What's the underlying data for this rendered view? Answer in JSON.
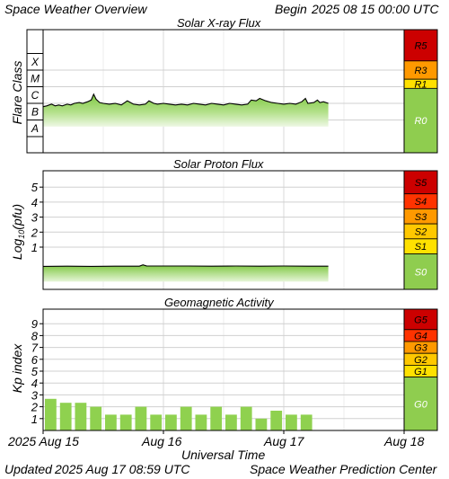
{
  "header": {
    "title": "Space Weather Overview",
    "begin_label": "Begin",
    "begin_value": "2025 08 15 00:00 UTC"
  },
  "footer": {
    "updated_label": "Updated",
    "updated_value": "2025 Aug 17 08:59 UTC",
    "credit": "Space Weather Prediction Center"
  },
  "colors": {
    "fill_green": "#8fd14f",
    "scale_G0": "#8fcd4f",
    "scale_1": "#ffe100",
    "scale_2": "#ffc800",
    "scale_3": "#ff9900",
    "scale_4": "#ff3300",
    "scale_5": "#cc0000"
  },
  "chart_data": [
    {
      "type": "area",
      "title": "Solar X-ray Flux",
      "ylabel": "Flare Class",
      "y_tick_labels": [
        "A",
        "B",
        "C",
        "M",
        "X"
      ],
      "x_tick_labels": [
        "2025 Aug 15",
        "Aug 16",
        "Aug 17",
        "Aug 18"
      ],
      "x_range_days": [
        0,
        3
      ],
      "data_end_day": 2.37,
      "series": [
        {
          "x_days": [
            0.0,
            0.03,
            0.07,
            0.1,
            0.13,
            0.16,
            0.2,
            0.23,
            0.26,
            0.3,
            0.33,
            0.37,
            0.4,
            0.42,
            0.44,
            0.47,
            0.5,
            0.55,
            0.6,
            0.65,
            0.7,
            0.75,
            0.8,
            0.85,
            0.88,
            0.92,
            0.95,
            1.0,
            1.05,
            1.1,
            1.15,
            1.2,
            1.25,
            1.3,
            1.35,
            1.4,
            1.45,
            1.5,
            1.55,
            1.6,
            1.65,
            1.7,
            1.73,
            1.77,
            1.8,
            1.85,
            1.9,
            1.95,
            2.0,
            2.05,
            2.1,
            2.15,
            2.18,
            2.2,
            2.25,
            2.28,
            2.3,
            2.33,
            2.37
          ],
          "class_level": [
            1.8,
            1.85,
            1.95,
            1.85,
            1.9,
            1.85,
            1.95,
            1.9,
            2.0,
            2.05,
            2.0,
            2.1,
            2.2,
            2.55,
            2.25,
            2.05,
            2.0,
            1.95,
            2.0,
            1.9,
            2.15,
            1.95,
            1.9,
            1.95,
            2.15,
            2.0,
            1.95,
            2.0,
            1.95,
            1.9,
            1.95,
            1.9,
            2.0,
            1.95,
            1.9,
            2.0,
            1.95,
            1.9,
            2.0,
            1.95,
            1.9,
            1.95,
            2.2,
            2.15,
            2.3,
            2.15,
            2.05,
            2.0,
            1.95,
            2.0,
            1.95,
            2.1,
            2.3,
            2.0,
            2.05,
            2.2,
            2.05,
            2.1,
            2.0
          ]
        }
      ],
      "scale": [
        {
          "label": "R5",
          "color": "#cc0000"
        },
        {
          "label": "R3",
          "color": "#ff9900"
        },
        {
          "label": "R1",
          "color": "#ffe100"
        },
        {
          "label": "R0",
          "color": "#8fcd4f"
        }
      ]
    },
    {
      "type": "area",
      "title": "Solar Proton Flux",
      "ylabel": "Log10(pfu)",
      "ylim": [
        -1,
        5.8
      ],
      "yticks": [
        1,
        2,
        3,
        4,
        5
      ],
      "x_tick_labels": [
        "2025 Aug 15",
        "Aug 16",
        "Aug 17",
        "Aug 18"
      ],
      "x_range_days": [
        0,
        3
      ],
      "data_end_day": 2.37,
      "series": [
        {
          "x_days": [
            0.0,
            0.2,
            0.4,
            0.6,
            0.8,
            0.83,
            0.86,
            1.0,
            1.2,
            1.4,
            1.6,
            1.8,
            2.0,
            2.2,
            2.37
          ],
          "log_pfu": [
            -0.28,
            -0.27,
            -0.28,
            -0.27,
            -0.27,
            -0.18,
            -0.25,
            -0.26,
            -0.26,
            -0.27,
            -0.26,
            -0.27,
            -0.26,
            -0.27,
            -0.27
          ]
        }
      ],
      "scale": [
        {
          "label": "S5",
          "color": "#cc0000"
        },
        {
          "label": "S4",
          "color": "#ff3300"
        },
        {
          "label": "S3",
          "color": "#ff9900"
        },
        {
          "label": "S2",
          "color": "#ffc800"
        },
        {
          "label": "S1",
          "color": "#ffe100"
        },
        {
          "label": "S0",
          "color": "#8fcd4f"
        }
      ]
    },
    {
      "type": "bar",
      "title": "Geomagnetic Activity",
      "ylabel": "Kp index",
      "ylim": [
        0,
        9.7
      ],
      "yticks": [
        1,
        2,
        3,
        4,
        5,
        6,
        7,
        8,
        9
      ],
      "x_tick_labels": [
        "2025 Aug 15",
        "Aug 16",
        "Aug 17",
        "Aug 18"
      ],
      "x_range_days": [
        0,
        3
      ],
      "bar_interval_hours": 3,
      "values": [
        2.67,
        2.33,
        2.33,
        2.0,
        1.33,
        1.33,
        2.0,
        1.33,
        1.33,
        2.0,
        1.33,
        2.0,
        1.33,
        2.0,
        1.0,
        1.67,
        1.33,
        1.33
      ],
      "scale": [
        {
          "label": "G5",
          "color": "#cc0000"
        },
        {
          "label": "G4",
          "color": "#ff3300"
        },
        {
          "label": "G3",
          "color": "#ff9900"
        },
        {
          "label": "G2",
          "color": "#ffc800"
        },
        {
          "label": "G1",
          "color": "#ffe100"
        },
        {
          "label": "G0",
          "color": "#8fcd4f"
        }
      ]
    }
  ],
  "xaxis": {
    "ticks": [
      "2025 Aug 15",
      "Aug 16",
      "Aug 17",
      "Aug 18"
    ],
    "label": "Universal Time"
  }
}
